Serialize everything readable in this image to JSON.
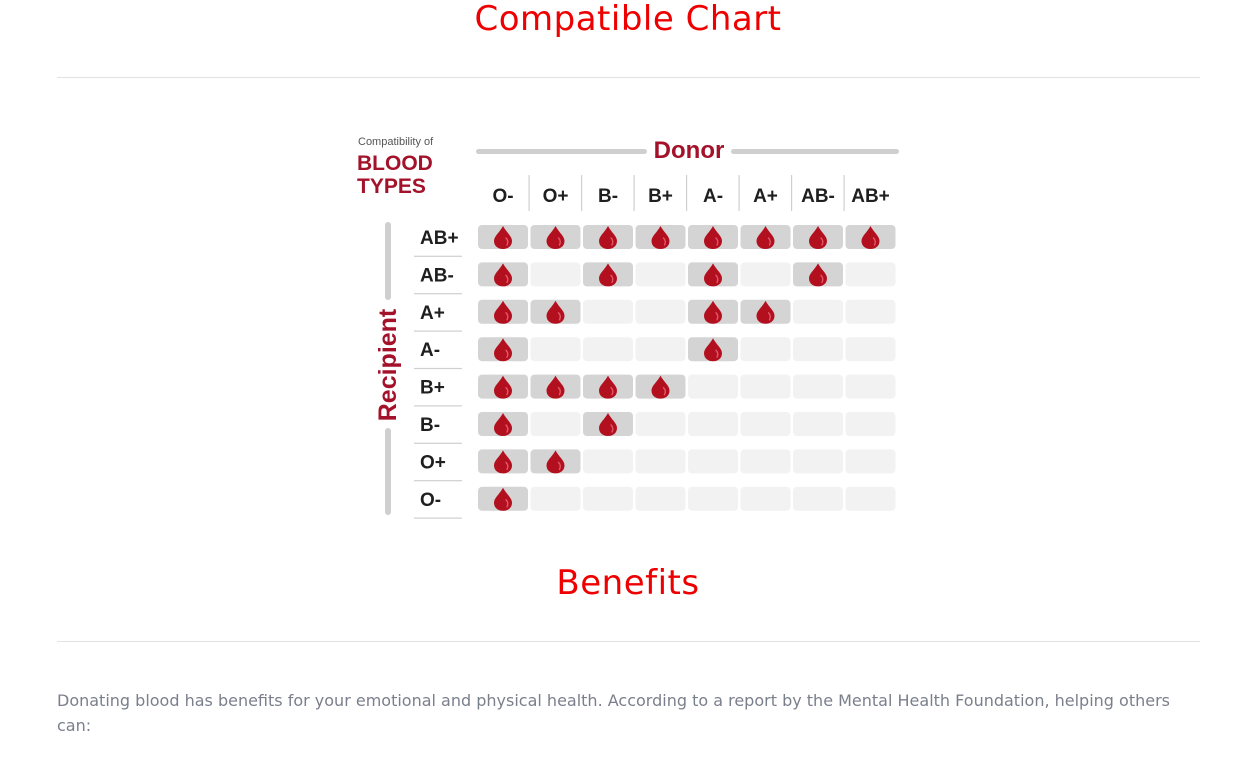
{
  "compat_title": "Compatible Chart",
  "graphic": {
    "small_heading": "Compatibility of",
    "big_heading_line1": "BLOOD",
    "big_heading_line2": "TYPES",
    "donor_label": "Donor",
    "recipient_label": "Recipient",
    "donor_types": [
      "O-",
      "O+",
      "B-",
      "B+",
      "A-",
      "A+",
      "AB-",
      "AB+"
    ],
    "recipient_types": [
      "AB+",
      "AB-",
      "A+",
      "A-",
      "B+",
      "B-",
      "O+",
      "O-"
    ],
    "compatibility": [
      [
        1,
        1,
        1,
        1,
        1,
        1,
        1,
        1
      ],
      [
        1,
        0,
        1,
        0,
        1,
        0,
        1,
        0
      ],
      [
        1,
        1,
        0,
        0,
        1,
        1,
        0,
        0
      ],
      [
        1,
        0,
        0,
        0,
        1,
        0,
        0,
        0
      ],
      [
        1,
        1,
        1,
        1,
        0,
        0,
        0,
        0
      ],
      [
        1,
        0,
        1,
        0,
        0,
        0,
        0,
        0
      ],
      [
        1,
        1,
        0,
        0,
        0,
        0,
        0,
        0
      ],
      [
        1,
        0,
        0,
        0,
        0,
        0,
        0,
        0
      ]
    ],
    "colors": {
      "brand_red": "#a3122a",
      "drop_red": "#b3101f",
      "cell_on": "#d4d4d4",
      "cell_off": "#f2f2f2",
      "rule_gray": "#cfcfcf"
    },
    "icon": "blood-drop-icon"
  },
  "benefits_title": "Benefits",
  "benefits_text": "Donating blood has benefits for your emotional and physical health. According to a report by the Mental Health Foundation, helping others can:",
  "colors": {
    "title_red": "#ee0000",
    "body_gray": "#7a7f8c",
    "divider": "#e2e2e2"
  }
}
